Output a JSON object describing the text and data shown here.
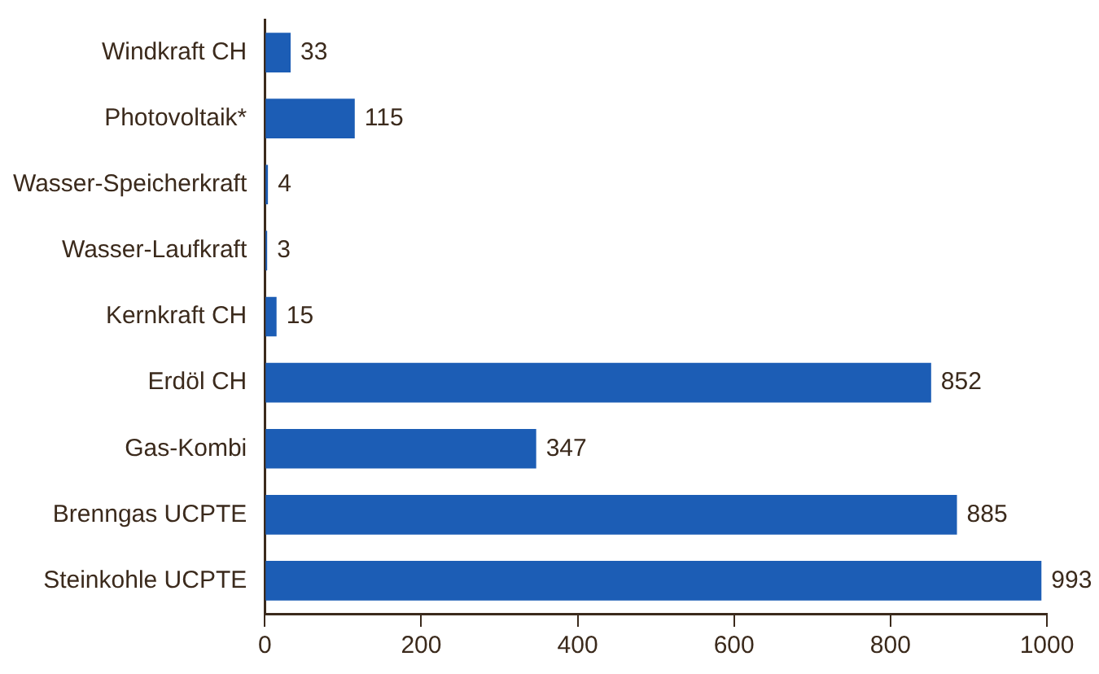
{
  "chart_data": {
    "type": "bar",
    "orientation": "horizontal",
    "categories": [
      "Windkraft CH",
      "Photovoltaik*",
      "Wasser-Speicherkraft",
      "Wasser-Laufkraft",
      "Kernkraft CH",
      "Erdöl CH",
      "Gas-Kombi",
      "Brenngas UCPTE",
      "Steinkohle UCPTE"
    ],
    "values": [
      33,
      115,
      4,
      3,
      15,
      852,
      347,
      885,
      993
    ],
    "color": "#1c5db5",
    "xlim": [
      0,
      1000
    ],
    "xticks": [
      0,
      200,
      400,
      600,
      800,
      1000
    ],
    "grid": false,
    "legend": false,
    "data_labels": true
  }
}
